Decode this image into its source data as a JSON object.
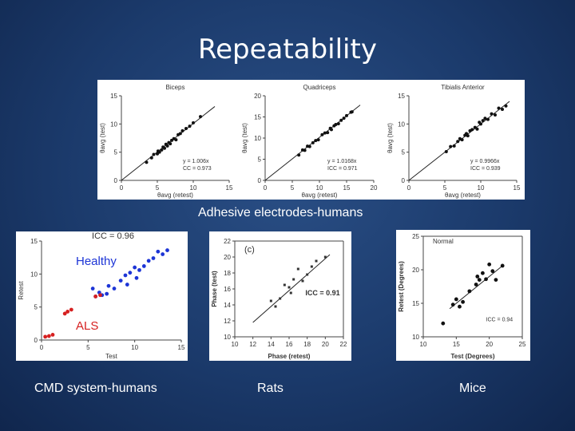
{
  "slide": {
    "title": "Repeatability",
    "captions": {
      "adhesive": "Adhesive electrodes-humans",
      "cmd": "CMD system-humans",
      "rats": "Rats",
      "mice": "Mice"
    }
  },
  "chart_data": [
    {
      "id": "biceps",
      "type": "scatter",
      "title": "Biceps",
      "xlabel": "θavg (retest)",
      "ylabel": "θavg (test)",
      "xlim": [
        0,
        15
      ],
      "ylim": [
        0,
        15
      ],
      "xticks": [
        0,
        5,
        10,
        15
      ],
      "yticks": [
        0,
        5,
        10,
        15
      ],
      "annotation": [
        "y = 1.006x",
        "CC = 0.973"
      ],
      "fit": [
        [
          0,
          0
        ],
        [
          13,
          13.1
        ]
      ],
      "points": [
        [
          3.5,
          3.2
        ],
        [
          4.2,
          4
        ],
        [
          4.5,
          4.6
        ],
        [
          5,
          4.7
        ],
        [
          5.1,
          5.2
        ],
        [
          5.3,
          5
        ],
        [
          5.6,
          5.4
        ],
        [
          5.8,
          5.9
        ],
        [
          6,
          5.7
        ],
        [
          6.2,
          6.4
        ],
        [
          6.4,
          6.1
        ],
        [
          6.6,
          6.7
        ],
        [
          6.8,
          6.5
        ],
        [
          7,
          7.1
        ],
        [
          7.3,
          7.4
        ],
        [
          7.6,
          7.2
        ],
        [
          7.9,
          8.1
        ],
        [
          8.2,
          8.3
        ],
        [
          8.5,
          8.8
        ],
        [
          9,
          9.2
        ],
        [
          9.5,
          9.6
        ],
        [
          10,
          10.2
        ],
        [
          11,
          11.3
        ]
      ]
    },
    {
      "id": "quadriceps",
      "type": "scatter",
      "title": "Quadriceps",
      "xlabel": "θavg (retest)",
      "ylabel": "θavg (test)",
      "xlim": [
        0,
        20
      ],
      "ylim": [
        0,
        20
      ],
      "xticks": [
        0,
        5,
        10,
        15,
        20
      ],
      "yticks": [
        0,
        5,
        10,
        15,
        20
      ],
      "annotation": [
        "y = 1.0168x",
        "ICC = 0.971"
      ],
      "fit": [
        [
          0,
          0
        ],
        [
          17.5,
          17.8
        ]
      ],
      "points": [
        [
          6.2,
          6
        ],
        [
          6.9,
          7.2
        ],
        [
          7.3,
          7.1
        ],
        [
          7.8,
          8.1
        ],
        [
          8.2,
          8
        ],
        [
          8.8,
          8.9
        ],
        [
          9.3,
          9.4
        ],
        [
          9.8,
          9.6
        ],
        [
          10.5,
          10.8
        ],
        [
          11,
          11.2
        ],
        [
          11.5,
          11.3
        ],
        [
          12,
          12.3
        ],
        [
          12.2,
          12
        ],
        [
          12.7,
          12.9
        ],
        [
          13,
          13.2
        ],
        [
          13.5,
          13.4
        ],
        [
          14,
          14.2
        ],
        [
          14.5,
          14.7
        ],
        [
          15,
          15.3
        ],
        [
          15.8,
          16.1
        ],
        [
          16,
          16.2
        ]
      ]
    },
    {
      "id": "tibialis",
      "type": "scatter",
      "title": "Tibialis Anterior",
      "xlabel": "θavg (retest)",
      "ylabel": "θavg (test)",
      "xlim": [
        0,
        15
      ],
      "ylim": [
        0,
        15
      ],
      "xticks": [
        0,
        5,
        10,
        15
      ],
      "yticks": [
        0,
        5,
        10,
        15
      ],
      "annotation": [
        "y = 0.9966x",
        "ICC = 0.939"
      ],
      "fit": [
        [
          0,
          0
        ],
        [
          14,
          14
        ]
      ],
      "points": [
        [
          5.2,
          5.1
        ],
        [
          5.8,
          6
        ],
        [
          6.3,
          6.1
        ],
        [
          6.8,
          6.9
        ],
        [
          7.1,
          7.4
        ],
        [
          7.4,
          7.2
        ],
        [
          7.8,
          8
        ],
        [
          8,
          8.3
        ],
        [
          8.2,
          7.9
        ],
        [
          8.5,
          8.8
        ],
        [
          8.8,
          9
        ],
        [
          9.2,
          9.4
        ],
        [
          9.5,
          9.1
        ],
        [
          9.8,
          10.3
        ],
        [
          10,
          10
        ],
        [
          10.3,
          10.6
        ],
        [
          10.6,
          11
        ],
        [
          11,
          10.8
        ],
        [
          11.5,
          11.8
        ],
        [
          12,
          11.6
        ],
        [
          12.5,
          12.8
        ],
        [
          13,
          12.6
        ],
        [
          13.5,
          13.2
        ]
      ]
    },
    {
      "id": "cmd",
      "type": "scatter",
      "title": "",
      "annotation": [
        "ICC = 0.96"
      ],
      "xlabel": "Test",
      "ylabel": "Retest",
      "xlim": [
        0,
        15
      ],
      "ylim": [
        0,
        15
      ],
      "xticks": [
        0,
        5,
        10,
        15
      ],
      "yticks": [
        0,
        5,
        10,
        15
      ],
      "groups": [
        {
          "name": "Healthy",
          "color": "#1d35d6",
          "points": [
            [
              5.5,
              7.8
            ],
            [
              5.8,
              6.6
            ],
            [
              6.2,
              7.2
            ],
            [
              6.5,
              6.8
            ],
            [
              7,
              7
            ],
            [
              7.2,
              8.2
            ],
            [
              7.8,
              7.8
            ],
            [
              8.5,
              9
            ],
            [
              9,
              9.8
            ],
            [
              9.5,
              10.2
            ],
            [
              10,
              11
            ],
            [
              10.5,
              10.6
            ],
            [
              11,
              11.2
            ],
            [
              11.5,
              12
            ],
            [
              12,
              12.4
            ],
            [
              12.5,
              13.4
            ],
            [
              13,
              13
            ],
            [
              13.5,
              13.6
            ],
            [
              9.2,
              8.4
            ],
            [
              10.2,
              9.4
            ]
          ]
        },
        {
          "name": "ALS",
          "color": "#d62020",
          "points": [
            [
              0.4,
              0.5
            ],
            [
              0.8,
              0.6
            ],
            [
              1.2,
              0.8
            ],
            [
              2.5,
              4
            ],
            [
              2.8,
              4.3
            ],
            [
              3.2,
              4.6
            ],
            [
              5.8,
              6.6
            ],
            [
              6.3,
              6.8
            ]
          ]
        }
      ],
      "labels": [
        "Healthy",
        "ALS"
      ]
    },
    {
      "id": "rats",
      "type": "scatter",
      "title": "(c)",
      "annotation": [
        "ICC = 0.91"
      ],
      "xlabel": "Phase (retest)",
      "ylabel": "Phase (test)",
      "xlim": [
        10,
        22
      ],
      "ylim": [
        10,
        22
      ],
      "xticks": [
        10,
        12,
        14,
        16,
        18,
        20,
        22
      ],
      "yticks": [
        10,
        12,
        14,
        16,
        18,
        20,
        22
      ],
      "fit": [
        [
          12,
          11.8
        ],
        [
          20.5,
          20.3
        ]
      ],
      "points": [
        [
          14,
          14.5
        ],
        [
          14.5,
          13.8
        ],
        [
          15,
          14.8
        ],
        [
          15.5,
          16.5
        ],
        [
          16,
          16.2
        ],
        [
          16.2,
          15.5
        ],
        [
          16.5,
          17.2
        ],
        [
          17,
          18.5
        ],
        [
          17.5,
          17
        ],
        [
          18,
          17.8
        ],
        [
          18.5,
          18.8
        ],
        [
          19,
          19.5
        ],
        [
          20,
          20
        ]
      ]
    },
    {
      "id": "mice",
      "type": "scatter",
      "title": "Normal",
      "annotation": [
        "ICC = 0.94"
      ],
      "xlabel": "Test (Degrees)",
      "ylabel": "Retest (Degrees)",
      "xlim": [
        10,
        25
      ],
      "ylim": [
        10,
        25
      ],
      "xticks": [
        10,
        15,
        20,
        25
      ],
      "yticks": [
        10,
        15,
        20,
        25
      ],
      "fit": [
        [
          14,
          14.2
        ],
        [
          22,
          20.6
        ]
      ],
      "points": [
        [
          13,
          12
        ],
        [
          14.5,
          14.8
        ],
        [
          15,
          15.6
        ],
        [
          15.5,
          14.5
        ],
        [
          16,
          15.2
        ],
        [
          17,
          16.8
        ],
        [
          18,
          17.8
        ],
        [
          18.2,
          19
        ],
        [
          18.5,
          18.5
        ],
        [
          19,
          19.5
        ],
        [
          19.5,
          18.6
        ],
        [
          20,
          20.8
        ],
        [
          20.5,
          19.8
        ],
        [
          21,
          18.5
        ],
        [
          22,
          20.6
        ]
      ]
    }
  ]
}
